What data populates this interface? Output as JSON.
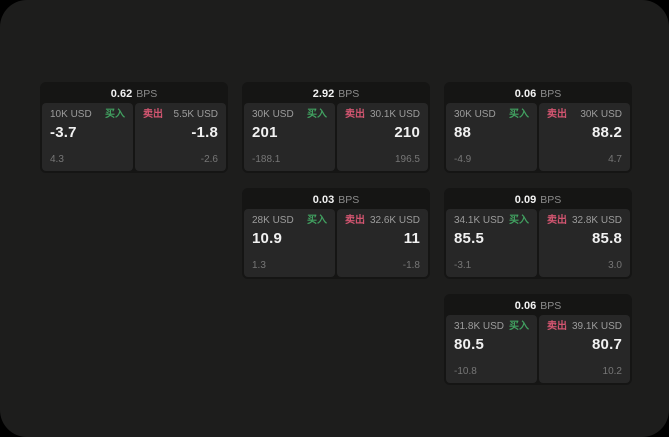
{
  "labels": {
    "bps": "BPS",
    "buy": "买入",
    "sell": "卖出"
  },
  "colors": {
    "window_bg": "#1d1d1c",
    "outside_bg": "#000000",
    "card_bg": "#151514",
    "panel_bg": "#272727",
    "buy_green": "#41a060",
    "sell_red": "#d25570"
  },
  "cards": [
    {
      "bps": "0.62",
      "buy": {
        "amount": "10K USD",
        "value": "-3.7",
        "delta": "4.3"
      },
      "sell": {
        "amount": "5.5K USD",
        "value": "-1.8",
        "delta": "-2.6"
      }
    },
    {
      "bps": "2.92",
      "buy": {
        "amount": "30K USD",
        "value": "201",
        "delta": "-188.1"
      },
      "sell": {
        "amount": "30.1K USD",
        "value": "210",
        "delta": "196.5"
      }
    },
    {
      "bps": "0.06",
      "buy": {
        "amount": "30K USD",
        "value": "88",
        "delta": "-4.9"
      },
      "sell": {
        "amount": "30K USD",
        "value": "88.2",
        "delta": "4.7"
      }
    },
    {
      "bps": "0.03",
      "buy": {
        "amount": "28K USD",
        "value": "10.9",
        "delta": "1.3"
      },
      "sell": {
        "amount": "32.6K USD",
        "value": "11",
        "delta": "-1.8"
      }
    },
    {
      "bps": "0.09",
      "buy": {
        "amount": "34.1K USD",
        "value": "85.5",
        "delta": "-3.1"
      },
      "sell": {
        "amount": "32.8K USD",
        "value": "85.8",
        "delta": "3.0"
      }
    },
    {
      "bps": "0.06",
      "buy": {
        "amount": "31.8K USD",
        "value": "80.5",
        "delta": "-10.8"
      },
      "sell": {
        "amount": "39.1K USD",
        "value": "80.7",
        "delta": "10.2"
      }
    }
  ]
}
